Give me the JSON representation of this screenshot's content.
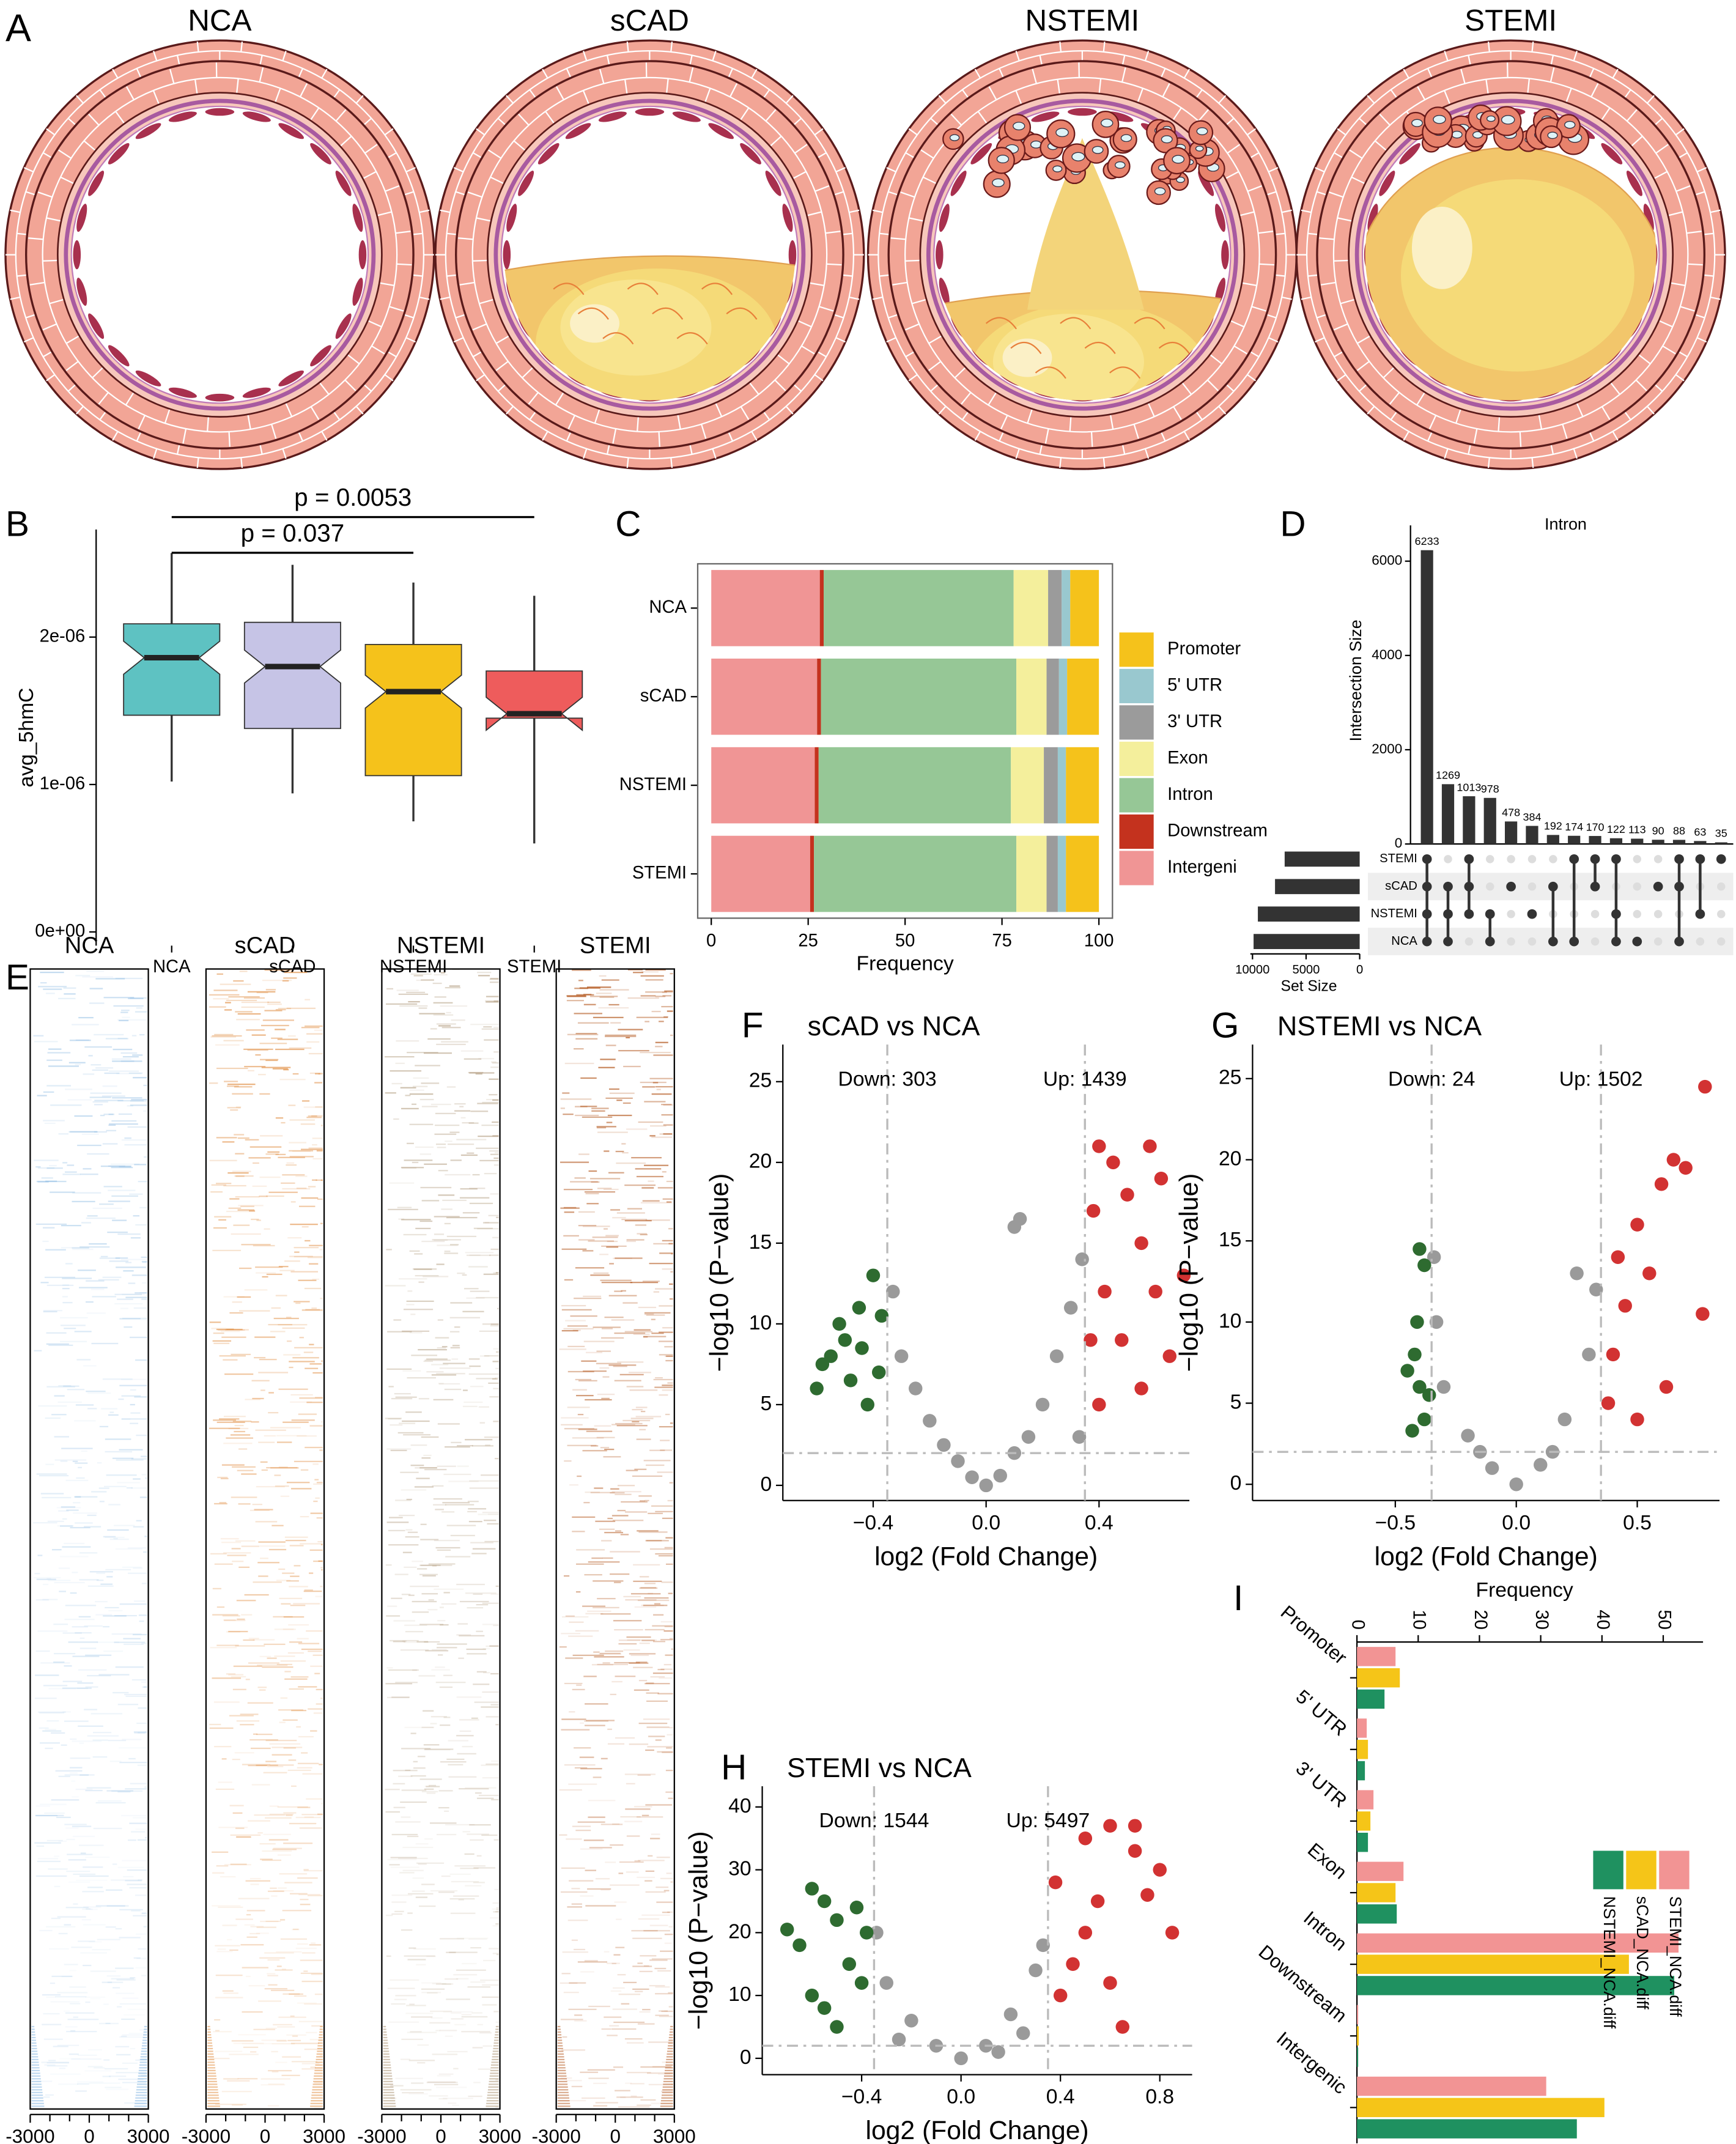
{
  "illustration": {
    "panel": "A",
    "titles": [
      "NCA",
      "sCAD",
      "NSTEMI",
      "STEMI"
    ]
  },
  "chart_data": [
    {
      "panel": "B",
      "type": "box",
      "ylabel": "avg_5hmC",
      "categories": [
        "NCA",
        "sCAD",
        "NSTEMI",
        "STEMI"
      ],
      "colors": [
        "#5ec2c2",
        "#c6c4e6",
        "#f5c21b",
        "#ee5c5c"
      ],
      "boxes": [
        {
          "low": 1.02e-06,
          "q1": 1.47e-06,
          "median": 1.86e-06,
          "q3": 2.09e-06,
          "high": 2.57e-06
        },
        {
          "low": 9.4e-07,
          "q1": 1.38e-06,
          "median": 1.8e-06,
          "q3": 2.1e-06,
          "high": 2.49e-06
        },
        {
          "low": 7.5e-07,
          "q1": 1.06e-06,
          "median": 1.63e-06,
          "q3": 1.95e-06,
          "high": 2.37e-06
        },
        {
          "low": 6e-07,
          "q1": 1.45e-06,
          "median": 1.48e-06,
          "q3": 1.77e-06,
          "high": 2.28e-06
        }
      ],
      "ylim": [
        -9.3e-08,
        2.73e-06
      ],
      "yticks": [
        {
          "value": 0,
          "label": "0e+00"
        },
        {
          "value": 1e-06,
          "label": "1e-06"
        },
        {
          "value": 2e-06,
          "label": "2e-06"
        }
      ],
      "annotations": [
        "p = 0.037",
        "p = 0.0053"
      ]
    },
    {
      "panel": "C",
      "type": "bar",
      "orientation": "horizontal",
      "stacked": true,
      "xlabel": "Frequency",
      "categories": [
        "NCA",
        "sCAD",
        "NSTEMI",
        "STEMI"
      ],
      "xlim": [
        -3.5,
        103.5
      ],
      "xticks": [
        0,
        25,
        50,
        75,
        100
      ],
      "series": [
        {
          "name": "Intergeni",
          "color": "#f09595",
          "values": [
            28,
            27.3,
            26.7,
            25.5
          ]
        },
        {
          "name": "Downstream",
          "color": "#c4321e",
          "values": [
            1,
            1,
            1,
            1
          ]
        },
        {
          "name": "Intron",
          "color": "#96c796",
          "values": [
            49,
            50.4,
            49.6,
            52.2
          ]
        },
        {
          "name": "Exon",
          "color": "#f4ef9c",
          "values": [
            8.9,
            7.8,
            8.5,
            7.8
          ]
        },
        {
          "name": "3' UTR",
          "color": "#9b9b9b",
          "values": [
            3.5,
            3.2,
            3.6,
            2.9
          ]
        },
        {
          "name": "5' UTR",
          "color": "#99c8cf",
          "values": [
            2.2,
            2.1,
            2.1,
            2.1
          ]
        },
        {
          "name": "Promoter",
          "color": "#f5c21b",
          "values": [
            7.4,
            8.2,
            8.5,
            8.5
          ]
        }
      ]
    },
    {
      "panel": "D",
      "type": "upset",
      "title": "Intron",
      "ylabel": "Intersection Size",
      "xlabel": "Set Size",
      "color": "#333333",
      "values": [
        6233,
        1269,
        1013,
        978,
        478,
        384,
        192,
        174,
        170,
        122,
        113,
        90,
        88,
        63,
        35
      ],
      "ylim": [
        0,
        6760
      ],
      "yticks": [
        0,
        2000,
        4000,
        6000
      ],
      "sets": [
        "STEMI",
        "sCAD",
        "NSTEMI",
        "NCA"
      ],
      "set_sizes": [
        7000,
        7900,
        9500,
        9900
      ],
      "xlim": [
        0,
        10200
      ],
      "xticks": [
        10000,
        5000,
        0
      ],
      "intersections": [
        [
          0,
          1,
          2,
          3
        ],
        [
          1,
          2,
          3
        ],
        [
          0,
          1,
          2
        ],
        [
          2,
          3
        ],
        [
          1
        ],
        [
          2
        ],
        [
          1,
          3
        ],
        [
          0,
          3
        ],
        [
          0,
          1
        ],
        [
          0,
          2,
          3
        ],
        [
          3
        ],
        [
          1
        ],
        [
          0,
          1,
          3
        ],
        [
          0,
          2
        ],
        [
          0
        ]
      ]
    },
    {
      "panel": "E",
      "type": "heatmap",
      "titles": [
        "NCA",
        "sCAD",
        "NSTEMI",
        "STEMI"
      ],
      "colors": [
        "#7fb3e0",
        "#e08a3c",
        "#a88f6e",
        "#b4581e"
      ],
      "xlim": [
        -3000,
        3000
      ],
      "xticks": [
        -3000,
        0,
        3000
      ],
      "xminorticks": [
        -2000,
        -1000,
        1000,
        2000
      ]
    },
    {
      "panel": "F",
      "type": "scatter",
      "title": "sCAD vs NCA",
      "annotations": [
        "Down: 303",
        "Up: 1439"
      ],
      "xlabel": "log2 (Fold Change)",
      "ylabel": "−log10 (P−value)",
      "xlim": [
        -0.72,
        0.72
      ],
      "ylim": [
        -0.94,
        27.3
      ],
      "xticks": [
        {
          "value": -0.4,
          "label": "−0.4"
        },
        {
          "value": 0,
          "label": "0.0"
        },
        0.4
      ],
      "yticks": [
        0,
        5,
        10,
        15,
        20,
        25
      ],
      "vlines": [
        -0.35,
        0.35
      ],
      "hline": 2,
      "series": [
        {
          "color": "#9a9a9a",
          "x": [
            0,
            -0.05,
            0.05,
            -0.1,
            0.1,
            -0.2,
            0.2,
            -0.3,
            0.3,
            0.34,
            -0.33,
            0.15,
            -0.15,
            0.1,
            0.12,
            0.25,
            -0.25,
            0.33
          ],
          "y": [
            0,
            0.5,
            0.6,
            1.5,
            2,
            4,
            5,
            8,
            11,
            14,
            12,
            3,
            2.5,
            16,
            16.5,
            8,
            6,
            3
          ]
        },
        {
          "color": "#2e6b30",
          "x": [
            -0.4,
            -0.45,
            -0.5,
            -0.55,
            -0.6,
            -0.38,
            -0.42,
            -0.48,
            -0.52,
            -0.37,
            -0.44,
            -0.58
          ],
          "y": [
            13,
            11,
            9,
            8,
            6,
            7,
            5,
            6.5,
            10,
            10.5,
            8.5,
            7.5
          ]
        },
        {
          "color": "#d23232",
          "x": [
            0.4,
            0.45,
            0.5,
            0.55,
            0.6,
            0.65,
            0.38,
            0.42,
            0.48,
            0.55,
            0.4,
            0.62,
            0.58,
            0.7,
            0.37
          ],
          "y": [
            21,
            20,
            18,
            15,
            12,
            8,
            17,
            12,
            9,
            6,
            5,
            19,
            21,
            13,
            9
          ]
        }
      ]
    },
    {
      "panel": "G",
      "type": "scatter",
      "title": "NSTEMI vs NCA",
      "annotations": [
        "Down: 24",
        "Up: 1502"
      ],
      "xlabel": "log2 (Fold Change)",
      "ylabel": "−log10 (P−value)",
      "xlim": [
        -1.09,
        0.84
      ],
      "ylim": [
        -1.0,
        27.1
      ],
      "xticks": [
        {
          "value": -0.5,
          "label": "−0.5"
        },
        {
          "value": 0,
          "label": "0.0"
        },
        0.5
      ],
      "yticks": [
        0,
        5,
        10,
        15,
        20,
        25
      ],
      "vlines": [
        -0.35,
        0.35
      ],
      "hline": 2,
      "series": [
        {
          "color": "#9a9a9a",
          "x": [
            0,
            -0.1,
            0.1,
            -0.2,
            0.2,
            -0.3,
            0.3,
            -0.33,
            0.33,
            -0.34,
            0.25,
            0.15,
            -0.15
          ],
          "y": [
            0,
            1,
            1.2,
            3,
            4,
            6,
            8,
            10,
            12,
            14,
            13,
            2,
            2
          ]
        },
        {
          "color": "#2e6b30",
          "x": [
            -0.4,
            -0.38,
            -0.42,
            -0.45,
            -0.4,
            -0.38,
            -0.43,
            -0.36,
            -0.41
          ],
          "y": [
            14.5,
            13.5,
            8,
            7,
            6,
            4,
            3.3,
            5.5,
            10
          ]
        },
        {
          "color": "#d23232",
          "x": [
            0.78,
            0.7,
            0.6,
            0.5,
            0.55,
            0.45,
            0.4,
            0.38,
            0.62,
            0.77,
            0.5,
            0.42,
            0.65
          ],
          "y": [
            24.5,
            19.5,
            18.5,
            16,
            13,
            11,
            8,
            5,
            6,
            10.5,
            4,
            14,
            20
          ]
        }
      ]
    },
    {
      "panel": "H",
      "type": "scatter",
      "title": "STEMI vs NCA",
      "annotations": [
        "Down: 1544",
        "Up: 5497"
      ],
      "xlabel": "log2 (Fold Change)",
      "ylabel": "−log10 (P−value)",
      "xlim": [
        -0.8,
        0.93
      ],
      "ylim": [
        -2.6,
        43.3
      ],
      "xticks": [
        {
          "value": -0.4,
          "label": "−0.4"
        },
        {
          "value": 0,
          "label": "0.0"
        },
        0.4,
        0.8
      ],
      "yticks": [
        0,
        10,
        20,
        30,
        40
      ],
      "vlines": [
        -0.35,
        0.35
      ],
      "hline": 2,
      "series": [
        {
          "color": "#9a9a9a",
          "x": [
            0,
            -0.1,
            0.1,
            -0.2,
            0.2,
            -0.3,
            0.3,
            -0.34,
            0.33,
            -0.25,
            0.25,
            0.15
          ],
          "y": [
            0,
            2,
            2,
            6,
            7,
            12,
            14,
            20,
            18,
            3,
            4,
            1
          ]
        },
        {
          "color": "#2e6b30",
          "x": [
            -0.6,
            -0.55,
            -0.5,
            -0.65,
            -0.7,
            -0.45,
            -0.4,
            -0.55,
            -0.6,
            -0.38,
            -0.5,
            -0.42
          ],
          "y": [
            27,
            25,
            22,
            18,
            20.5,
            15,
            12,
            8,
            10,
            20,
            5,
            24
          ]
        },
        {
          "color": "#d23232",
          "x": [
            0.5,
            0.6,
            0.7,
            0.8,
            0.85,
            0.55,
            0.45,
            0.4,
            0.65,
            0.75,
            0.5,
            0.6,
            0.38,
            0.7
          ],
          "y": [
            35,
            37,
            33,
            30,
            20,
            25,
            15,
            10,
            5,
            26,
            20,
            12,
            28,
            37
          ]
        }
      ]
    },
    {
      "panel": "I",
      "type": "bar",
      "orientation": "horizontal",
      "stacked": false,
      "xlabel": "Frequency",
      "categories": [
        "Promoter",
        "5' UTR",
        "3' UTR",
        "Exon",
        "Intron",
        "Downstream",
        "Intergenic"
      ],
      "xlim": [
        0,
        56.5
      ],
      "xticks": [
        0,
        10,
        20,
        30,
        40,
        50
      ],
      "legend": "top right",
      "series": [
        {
          "name": "STEMI_NCA.diff",
          "color": "#f29494",
          "values": [
            6.3,
            1.6,
            2.7,
            7.6,
            52.5,
            0.2,
            30.9
          ]
        },
        {
          "name": "sCAD_NCA.diff",
          "color": "#f5c518",
          "values": [
            7.0,
            1.8,
            2.2,
            6.3,
            44.4,
            0.3,
            40.4
          ]
        },
        {
          "name": "NSTEMI_NCA.diff",
          "color": "#1f9160",
          "values": [
            4.5,
            1.3,
            1.8,
            6.5,
            51.8,
            0.2,
            35.9
          ]
        }
      ]
    }
  ]
}
